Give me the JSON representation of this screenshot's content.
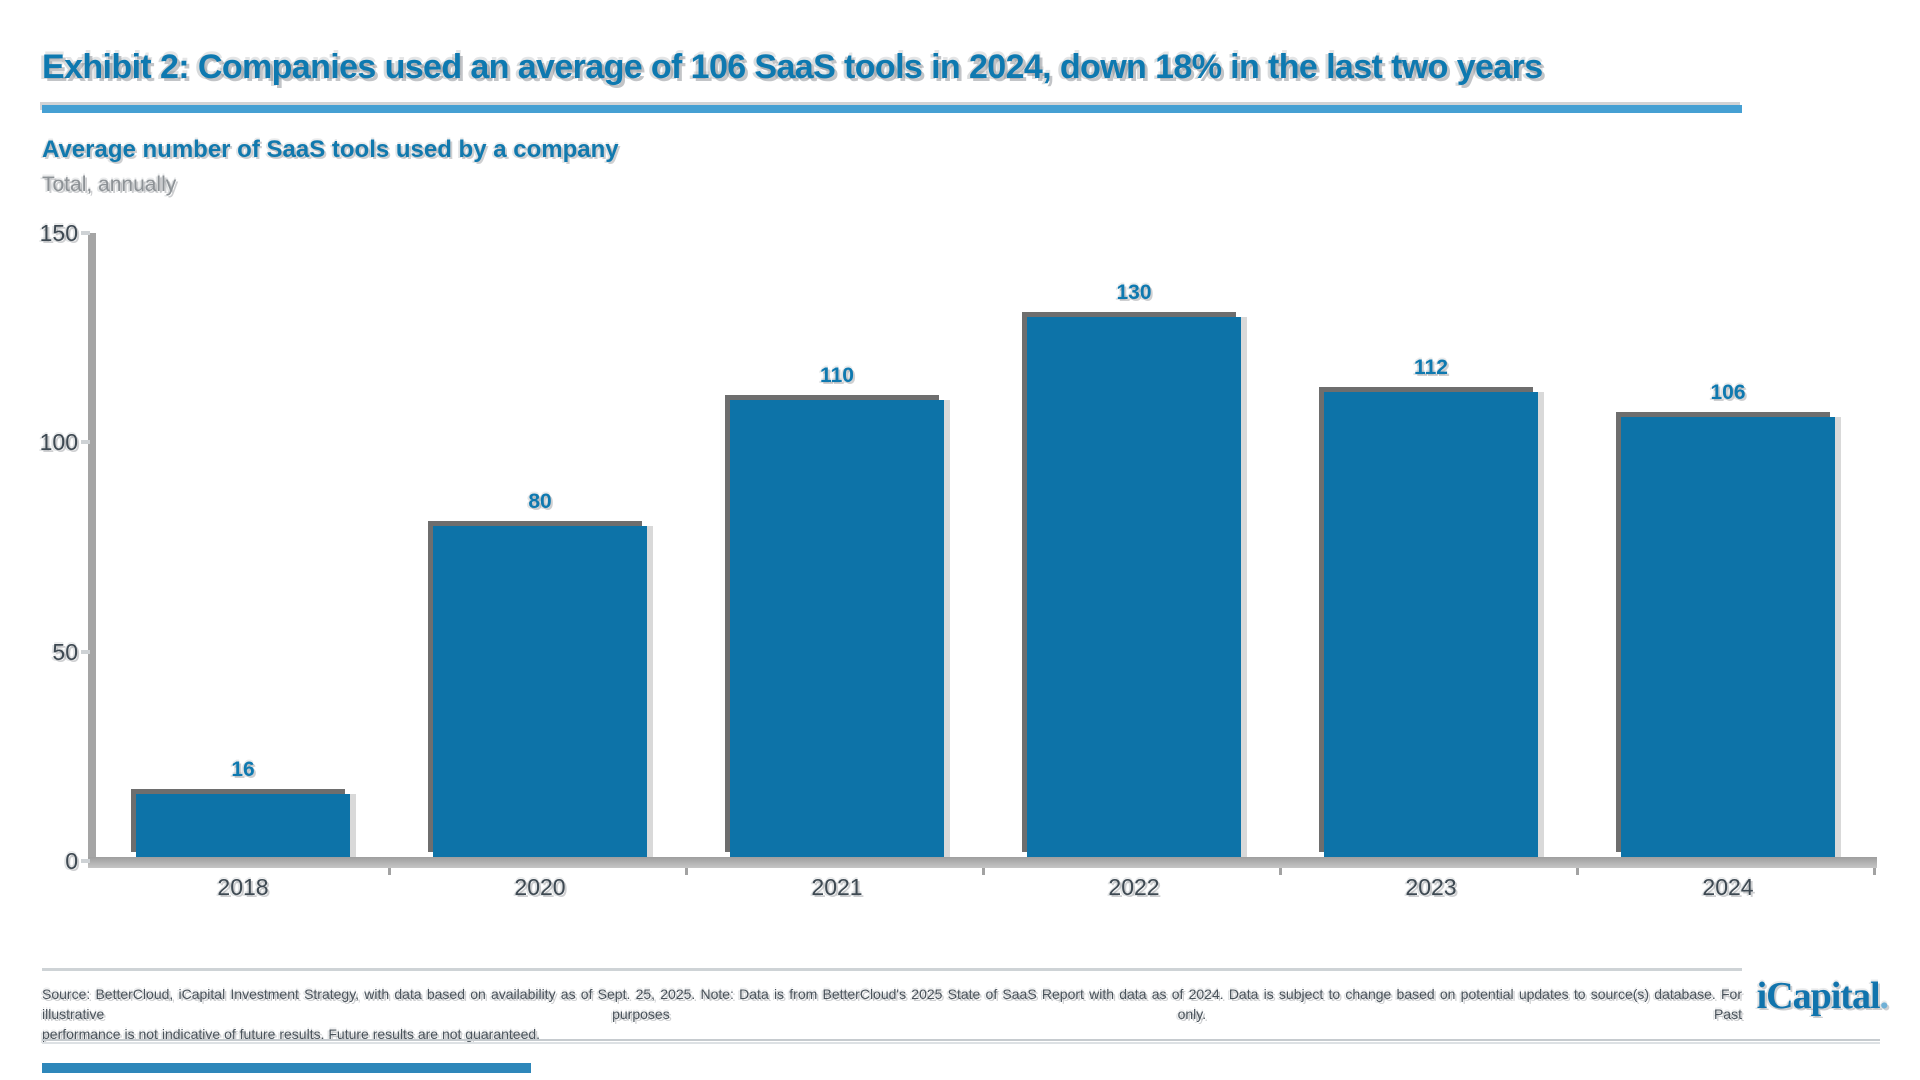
{
  "header": {
    "title": "Exhibit 2: Companies used an average of 106 SaaS tools in 2024, down 18% in the last two years"
  },
  "chart": {
    "subtitle": "Average number of SaaS tools used by a company",
    "unit_label": "Total, annually"
  },
  "chart_data": {
    "type": "bar",
    "title": "Average number of SaaS tools used by a company",
    "subtitle": "Total, annually",
    "categories": [
      "2018",
      "2020",
      "2021",
      "2022",
      "2023",
      "2024"
    ],
    "values": [
      16,
      80,
      110,
      130,
      112,
      106
    ],
    "value_labels": [
      "16",
      "80",
      "110",
      "130",
      "112",
      "106"
    ],
    "xlabel": "",
    "ylabel": "Total, annually",
    "ylim": [
      0,
      150
    ],
    "yticks": [
      0,
      50,
      100,
      150
    ],
    "grid": false,
    "legend_position": "none",
    "bar_color": "#0d73a8"
  },
  "footer": {
    "source_line1": "Source: BetterCloud, iCapital Investment Strategy, with data based on availability as of Sept. 25, 2025. Note: Data is from BetterCloud's 2025 State of SaaS Report with data as of 2024. Data is subject to change based on potential updates to source(s) database. For illustrative purposes only. Past",
    "source_line2": "performance is not indicative of future results. Future results are not guaranteed.",
    "logo_text": "iCapital",
    "logo_dot": "."
  },
  "colors": {
    "bar": "#0d73a8",
    "bar_shadow_dark": "#6e6e6e",
    "bar_shadow_light": "#d9d9d9",
    "title_blue": "#0e79b0",
    "underline_blue": "#46a0d3",
    "axis_gray": "#a5a5a5",
    "tick_text": "#3e4952",
    "muted_gray": "#8d9296",
    "footnote_text": "#49525a",
    "logo_blue": "#1174ad",
    "bottom_accent": "#2e87ba"
  }
}
